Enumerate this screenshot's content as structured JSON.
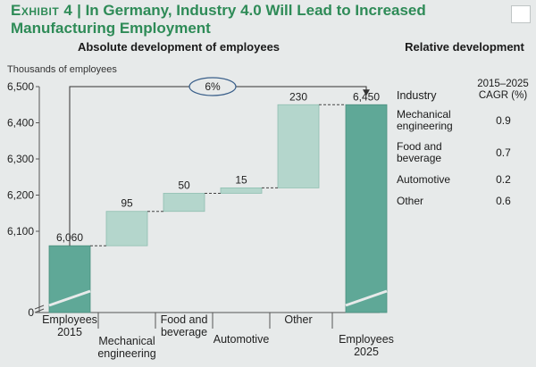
{
  "header": {
    "exhibit": "Exhibit 4",
    "title": "In Germany, Industry 4.0 Will Lead to Increased Manufacturing Employment"
  },
  "left_subtitle": "Absolute development of employees",
  "right_subtitle": "Relative development",
  "unit_label": "Thousands of employees",
  "relative": {
    "col_industry": "Industry",
    "col_cagr": "2015–2025 CAGR (%)",
    "rows": [
      {
        "industry": "Mechanical engineering",
        "cagr": "0.9"
      },
      {
        "industry": "Food and beverage",
        "cagr": "0.7"
      },
      {
        "industry": "Automotive",
        "cagr": "0.2"
      },
      {
        "industry": "Other",
        "cagr": "0.6"
      }
    ]
  },
  "colors": {
    "dark": "#5fa897",
    "light": "#b4d6cc",
    "accent": "#2e8b57"
  },
  "chart_data": {
    "type": "bar",
    "subtype": "waterfall",
    "categories": [
      "Employees 2015",
      "Mechanical engineering",
      "Food and beverage",
      "Automotive",
      "Other",
      "Employees 2025"
    ],
    "values": [
      6060,
      95,
      50,
      15,
      230,
      6450
    ],
    "value_labels": [
      "6,060",
      "95",
      "50",
      "15",
      "230",
      "6,450"
    ],
    "bar_kind": [
      "total",
      "increment",
      "increment",
      "increment",
      "increment",
      "total"
    ],
    "y_ticks": [
      "6,500",
      "6,400",
      "6,300",
      "6,200",
      "6,100",
      "0"
    ],
    "y_tick_values": [
      6500,
      6400,
      6300,
      6200,
      6100,
      0
    ],
    "ylim": [
      6000,
      6500
    ],
    "axis_break": true,
    "growth_annotation": "6%",
    "ylabel": "Thousands of employees"
  }
}
